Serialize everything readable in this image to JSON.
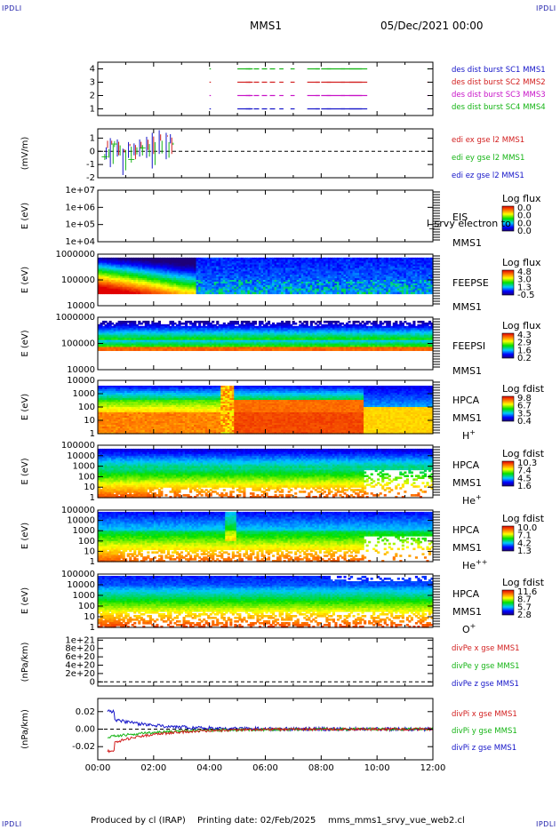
{
  "corner_mark": "IPDLI",
  "header": {
    "spacecraft": "MMS1",
    "date": "05/Dec/2021 00:00"
  },
  "footer": {
    "produced_by": "Produced by cl (IRAP)",
    "printing_date": "Printing date: 02/Feb/2025",
    "file": "mms_mms1_srvy_vue_web2.cl"
  },
  "time_axis": {
    "ticks": [
      "00:00",
      "02:00",
      "04:00",
      "06:00",
      "08:00",
      "10:00",
      "12:00"
    ],
    "range_hours": [
      0,
      12
    ]
  },
  "chart_data": [
    {
      "type": "scatter",
      "id": "burst",
      "ylim": [
        0.5,
        4.5
      ],
      "yticks": [
        "1",
        "2",
        "3",
        "4"
      ],
      "series": [
        {
          "name": "des dist burst SC1 MMS1",
          "color": "#1414c8",
          "y": 1,
          "x_start": [
            4.0,
            5.0,
            5.4,
            6.5,
            6.9,
            7.5,
            7.8,
            8.2,
            8.7,
            9.0,
            9.5,
            11.8
          ]
        },
        {
          "name": "des dist burst SC2 MMS2",
          "color": "#d21e1e",
          "y": 3,
          "x_start": [
            4.0,
            5.0,
            5.4,
            6.5,
            6.9,
            7.5,
            7.8,
            8.2,
            8.7,
            9.0,
            9.5,
            11.8
          ]
        },
        {
          "name": "des dist burst SC3 MMS3",
          "color": "#c814c8",
          "y": 2,
          "x_start": [
            4.0,
            5.0,
            5.4,
            6.5,
            6.9,
            7.5,
            7.8,
            8.2,
            8.7,
            9.0,
            9.5,
            11.8
          ]
        },
        {
          "name": "des dist burst SC4 MMS4",
          "color": "#14b414",
          "y": 4,
          "x_start": [
            4.0,
            5.0,
            5.4,
            6.5,
            6.9,
            7.5,
            7.8,
            8.2,
            8.7,
            9.0,
            9.5,
            11.8
          ]
        }
      ]
    },
    {
      "type": "line",
      "id": "edi",
      "ylabel": "(mV/m)",
      "ylim": [
        -2,
        1.7
      ],
      "yticks": [
        "-2",
        "-1",
        "0",
        "1"
      ],
      "series": [
        {
          "name": "edi ex gse l2 MMS1",
          "color": "#d21e1e"
        },
        {
          "name": "edi ey gse l2 MMS1",
          "color": "#14b414"
        },
        {
          "name": "edi ez gse l2 MMS1",
          "color": "#1414c8"
        }
      ]
    },
    {
      "type": "heatmap",
      "id": "eis",
      "ylabel": "E (eV)",
      "yticks": [
        "1e+07",
        "1e+06",
        "1e+05",
        "1e+04"
      ],
      "labels": [
        "EIS",
        "MMS1"
      ],
      "overlay_text": "l_srvy electron to",
      "colorbar": {
        "title": "Log flux",
        "ticks": [
          "0.0",
          "0.0",
          "0.0",
          "0.0"
        ]
      }
    },
    {
      "type": "heatmap",
      "id": "feepse",
      "ylabel": "E (eV)",
      "yticks": [
        "1000000",
        "100000",
        "10000"
      ],
      "labels": [
        "FEEPSE",
        "MMS1"
      ],
      "colorbar": {
        "title": "Log flux",
        "ticks": [
          "4.8",
          "3.0",
          "1.3",
          "-0.5"
        ]
      }
    },
    {
      "type": "heatmap",
      "id": "feepsi",
      "ylabel": "E (eV)",
      "yticks": [
        "1000000",
        "100000",
        "10000"
      ],
      "labels": [
        "FEEPSI",
        "MMS1"
      ],
      "colorbar": {
        "title": "Log flux",
        "ticks": [
          "4.3",
          "2.9",
          "1.6",
          "0.2"
        ]
      }
    },
    {
      "type": "heatmap",
      "id": "hpca_h",
      "ylabel": "E (eV)",
      "yticks": [
        "10000",
        "1000",
        "100",
        "10",
        "1"
      ],
      "labels": [
        "HPCA",
        "MMS1",
        "H+"
      ],
      "colorbar": {
        "title": "Log fdist",
        "ticks": [
          "9.8",
          "6.7",
          "3.5",
          "0.4"
        ]
      }
    },
    {
      "type": "heatmap",
      "id": "hpca_he",
      "ylabel": "E (eV)",
      "yticks": [
        "100000",
        "10000",
        "1000",
        "100",
        "10",
        "1"
      ],
      "labels": [
        "HPCA",
        "MMS1",
        "He+"
      ],
      "colorbar": {
        "title": "Log fdist",
        "ticks": [
          "10.3",
          "7.4",
          "4.5",
          "1.6"
        ]
      }
    },
    {
      "type": "heatmap",
      "id": "hpca_hepp",
      "ylabel": "E (eV)",
      "yticks": [
        "100000",
        "10000",
        "1000",
        "100",
        "10",
        "1"
      ],
      "labels": [
        "HPCA",
        "MMS1",
        "He++"
      ],
      "colorbar": {
        "title": "Log fdist",
        "ticks": [
          "10.0",
          "7.1",
          "4.2",
          "1.3"
        ]
      }
    },
    {
      "type": "heatmap",
      "id": "hpca_o",
      "ylabel": "E (eV)",
      "yticks": [
        "100000",
        "10000",
        "1000",
        "100",
        "10",
        "1"
      ],
      "labels": [
        "HPCA",
        "MMS1",
        "O+"
      ],
      "colorbar": {
        "title": "Log fdist",
        "ticks": [
          "11.6",
          "8.7",
          "5.7",
          "2.8"
        ]
      }
    },
    {
      "type": "line",
      "id": "divpe",
      "ylabel": "(nPa/km)",
      "ylim": [
        -1e+20,
        1.05e+21
      ],
      "yticks": [
        "1e+21",
        "8e+20",
        "6e+20",
        "4e+20",
        "2e+20",
        "0"
      ],
      "series": [
        {
          "name": "divPe x gse MMS1",
          "color": "#d21e1e"
        },
        {
          "name": "divPe y gse MMS1",
          "color": "#14b414"
        },
        {
          "name": "divPe z gse MMS1",
          "color": "#1414c8"
        }
      ]
    },
    {
      "type": "line",
      "id": "divpi",
      "ylabel": "(nPa/km)",
      "ylim": [
        -0.035,
        0.035
      ],
      "yticks": [
        "0.02",
        "0.00",
        "-0.02"
      ],
      "series": [
        {
          "name": "divPi x gse MMS1",
          "color": "#d21e1e"
        },
        {
          "name": "divPi y gse MMS1",
          "color": "#14b414"
        },
        {
          "name": "divPi z gse MMS1",
          "color": "#1414c8"
        }
      ]
    }
  ]
}
